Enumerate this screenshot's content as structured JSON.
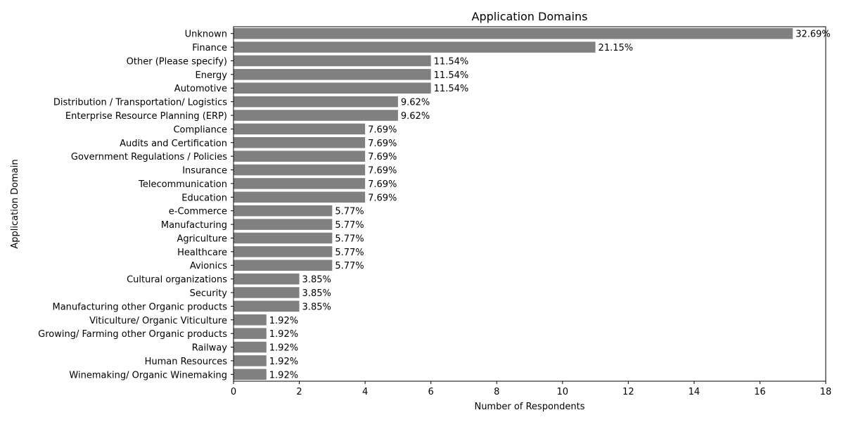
{
  "chart_data": {
    "type": "bar",
    "orientation": "horizontal",
    "title": "Application Domains",
    "xlabel": "Number of Respondents",
    "ylabel": "Application Domain",
    "xlim": [
      0,
      18
    ],
    "xticks": [
      0,
      2,
      4,
      6,
      8,
      10,
      12,
      14,
      16,
      18
    ],
    "grid": false,
    "legend": "none",
    "bar_color": "#808080",
    "categories": [
      "Unknown",
      "Finance",
      "Other (Please specify)",
      "Energy",
      "Automotive",
      "Distribution / Transportation/ Logistics",
      "Enterprise Resource Planning (ERP)",
      "Compliance",
      "Audits and Certification",
      "Government Regulations / Policies",
      "Insurance",
      "Telecommunication",
      "Education",
      "e-Commerce",
      "Manufacturing",
      "Agriculture",
      "Healthcare",
      "Avionics",
      "Cultural organizations",
      "Security",
      "Manufacturing other Organic products",
      "Viticulture/ Organic Viticulture",
      "Growing/ Farming other Organic products",
      "Railway",
      "Human Resources",
      "Winemaking/ Organic Winemaking"
    ],
    "values": [
      17,
      11,
      6,
      6,
      6,
      5,
      5,
      4,
      4,
      4,
      4,
      4,
      4,
      3,
      3,
      3,
      3,
      3,
      2,
      2,
      2,
      1,
      1,
      1,
      1,
      1
    ],
    "data_labels": [
      "32.69%",
      "21.15%",
      "11.54%",
      "11.54%",
      "11.54%",
      "9.62%",
      "9.62%",
      "7.69%",
      "7.69%",
      "7.69%",
      "7.69%",
      "7.69%",
      "7.69%",
      "5.77%",
      "5.77%",
      "5.77%",
      "5.77%",
      "5.77%",
      "3.85%",
      "3.85%",
      "3.85%",
      "1.92%",
      "1.92%",
      "1.92%",
      "1.92%",
      "1.92%"
    ]
  }
}
